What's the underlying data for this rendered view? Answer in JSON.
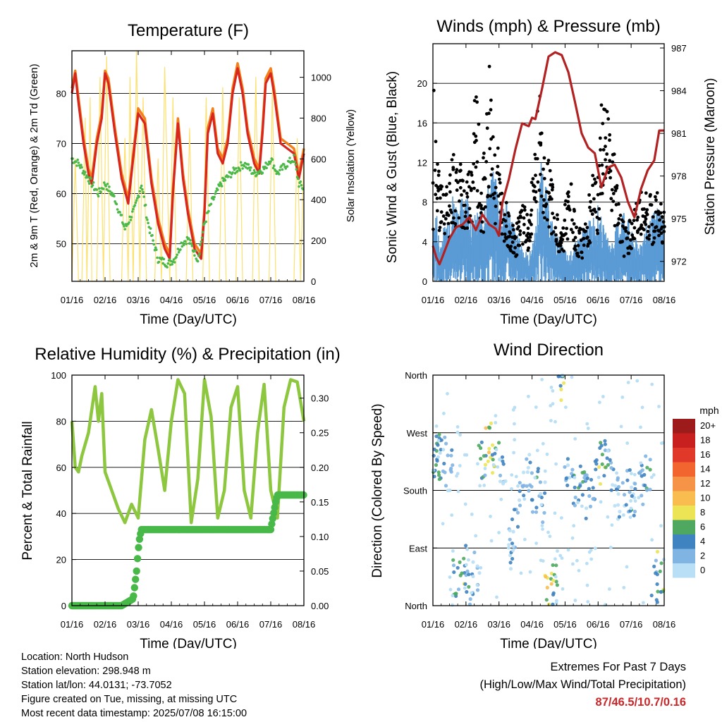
{
  "colors": {
    "temp_red": "#d7261e",
    "temp_orange": "#f2811d",
    "dewpoint_green": "#4cb848",
    "solar_yellow": "#fde06e",
    "wind_blue": "#5a9bd5",
    "gust_black": "#000000",
    "pressure_maroon": "#b22222",
    "rh_green": "#8dc63f",
    "precip_green": "#48b848",
    "extremes_red": "#c8282a"
  },
  "chart_data": [
    {
      "id": "temperature",
      "type": "line",
      "title": "Temperature (F)",
      "xlabel": "Time (Day/UTC)",
      "ylabel": "2m & 9m T (Red, Orange) & 2m Td (Green)",
      "ylabel_right": "Solar Insolation (Yellow)",
      "x_ticks": [
        "01/16",
        "02/16",
        "03/16",
        "04/16",
        "05/16",
        "06/16",
        "07/16",
        "08/16"
      ],
      "xlim": [
        0,
        7
      ],
      "ylim": [
        42.5,
        88.5
      ],
      "y_ticks": [
        50,
        60,
        70,
        80
      ],
      "ylim_right": [
        0,
        1130
      ],
      "y_ticks_right": [
        0,
        200,
        400,
        600,
        800,
        1000
      ],
      "grid": "horizontal",
      "series": [
        {
          "x": [
            0,
            0.1,
            0.2,
            0.35,
            0.5,
            0.6,
            0.75,
            0.9,
            1.0,
            1.1,
            1.3,
            1.5,
            1.7,
            1.8,
            2.0,
            2.2,
            2.4,
            2.6,
            2.8,
            2.95,
            3.05,
            3.2,
            3.35,
            3.5,
            3.7,
            3.9,
            4.0,
            4.1,
            4.25,
            4.4,
            4.55,
            4.7,
            4.85,
            5.0,
            5.15,
            5.3,
            5.5,
            5.65,
            5.75,
            5.85,
            6.0,
            6.1,
            6.3,
            6.5,
            6.7,
            6.85,
            7.0
          ],
          "y": [
            80,
            84,
            78,
            70,
            64,
            62,
            70,
            75,
            84,
            82,
            72,
            63,
            58,
            64,
            76,
            74,
            62,
            54,
            49,
            47,
            60,
            74,
            63,
            56,
            49,
            47,
            56,
            72,
            76,
            68,
            66,
            70,
            80,
            85,
            80,
            72,
            66,
            64,
            72,
            82,
            84,
            80,
            70,
            69,
            68,
            63,
            68
          ]
        },
        {
          "x": [
            0,
            0.1,
            0.2,
            0.35,
            0.5,
            0.6,
            0.75,
            0.9,
            1.0,
            1.1,
            1.3,
            1.5,
            1.7,
            1.8,
            2.0,
            2.2,
            2.4,
            2.6,
            2.8,
            2.95,
            3.05,
            3.2,
            3.35,
            3.5,
            3.7,
            3.9,
            4.0,
            4.1,
            4.25,
            4.4,
            4.55,
            4.7,
            4.85,
            5.0,
            5.15,
            5.3,
            5.5,
            5.65,
            5.75,
            5.85,
            6.0,
            6.1,
            6.3,
            6.5,
            6.7,
            6.85,
            7.0
          ],
          "y": [
            81,
            84.5,
            79,
            71,
            65,
            63,
            71,
            76,
            84.5,
            83,
            73,
            64,
            59,
            65,
            77,
            75,
            63,
            55,
            50,
            48,
            61,
            75,
            64,
            57,
            50,
            48,
            57,
            73,
            77,
            69,
            67,
            71,
            81,
            86,
            81,
            73,
            67,
            65,
            73,
            83,
            85,
            81,
            71,
            70,
            69,
            64,
            69
          ]
        },
        {
          "x": [
            0,
            0.2,
            0.5,
            0.8,
            1.0,
            1.3,
            1.6,
            1.9,
            2.1,
            2.3,
            2.6,
            2.9,
            3.1,
            3.3,
            3.5,
            3.8,
            4.0,
            4.2,
            4.5,
            4.8,
            5.0,
            5.2,
            5.5,
            5.8,
            6.0,
            6.2,
            6.5,
            6.7,
            6.85,
            7.0
          ],
          "y": [
            67,
            66,
            63,
            60,
            62,
            59,
            53,
            57,
            62,
            54,
            47,
            46,
            47,
            50,
            51,
            47,
            54,
            58,
            62,
            64,
            65,
            66,
            64,
            65,
            67,
            64,
            66,
            67,
            62,
            61
          ]
        },
        {
          "x": [
            0,
            0.1,
            0.2,
            0.3,
            0.4,
            0.45,
            0.55,
            0.6,
            0.75,
            0.85,
            0.95,
            1.05,
            1.15,
            1.25,
            1.5,
            1.6,
            1.7,
            1.75,
            1.85,
            1.95,
            2.05,
            2.15,
            2.25,
            2.5,
            2.6,
            2.7,
            2.8,
            2.95,
            3.05,
            3.15,
            3.25,
            3.45,
            3.55,
            3.65,
            3.75,
            3.95,
            4.05,
            4.15,
            4.25,
            4.45,
            4.55,
            4.65,
            4.75,
            4.95,
            5.05,
            5.15,
            5.25,
            5.45,
            5.55,
            5.65,
            5.75,
            5.95,
            6.05,
            6.15,
            6.25,
            6.5,
            6.7,
            6.8,
            6.9,
            7.0
          ],
          "y": [
            0,
            600,
            0,
            0,
            800,
            0,
            900,
            0,
            0,
            1000,
            0,
            1100,
            0,
            0,
            0,
            700,
            0,
            1000,
            0,
            1130,
            0,
            900,
            0,
            0,
            600,
            0,
            1050,
            0,
            900,
            0,
            0,
            0,
            750,
            0,
            0,
            0,
            900,
            0,
            0,
            0,
            950,
            0,
            0,
            0,
            900,
            0,
            0,
            0,
            1000,
            0,
            0,
            0,
            950,
            0,
            0,
            0,
            0,
            700,
            0,
            650
          ]
        }
      ]
    },
    {
      "id": "winds_pressure",
      "type": "scatter",
      "title": "Winds (mph) & Pressure (mb)",
      "xlabel": "Time (Day/UTC)",
      "ylabel": "Sonic Wind & Gust (Blue, Black)",
      "ylabel_right": "Station Pressure (Maroon)",
      "x_ticks": [
        "01/16",
        "02/16",
        "03/16",
        "04/16",
        "05/16",
        "06/16",
        "07/16",
        "08/16"
      ],
      "xlim": [
        0,
        7
      ],
      "ylim": [
        0,
        24
      ],
      "y_ticks": [
        0,
        4,
        8,
        12,
        16,
        20
      ],
      "ylim_right": [
        970.6,
        987.3
      ],
      "y_ticks_right": [
        972,
        975,
        978,
        981,
        984,
        987
      ],
      "grid": "horizontal",
      "series": [
        {
          "x": [
            0,
            0.1,
            0.2,
            0.4,
            0.6,
            0.8,
            1.0,
            1.2,
            1.5,
            1.7,
            1.9,
            2.1,
            2.2,
            2.5,
            2.7,
            2.9,
            3.1,
            3.3,
            3.5,
            3.7,
            3.9,
            4.1,
            4.3,
            4.5,
            4.8,
            5.0,
            5.2,
            5.4,
            5.6,
            5.8,
            6.0,
            6.2,
            6.4,
            6.6,
            6.8,
            7.0
          ],
          "y": [
            4,
            6,
            3,
            5,
            7,
            6,
            8,
            5,
            6,
            8,
            9,
            5,
            7,
            4,
            3,
            2,
            4,
            10,
            6,
            4,
            3,
            2,
            3,
            4,
            5,
            6,
            4,
            3,
            5,
            6,
            4,
            3,
            4,
            5,
            6,
            5
          ]
        },
        {
          "x": [
            0,
            0.05,
            0.1,
            0.15,
            0.3,
            0.5,
            0.6,
            0.7,
            0.9,
            1.0,
            1.1,
            1.2,
            1.3,
            1.5,
            1.6,
            1.7,
            1.8,
            1.9,
            2.0,
            2.1,
            2.3,
            2.5,
            2.7,
            2.9,
            3.1,
            3.2,
            3.3,
            3.4,
            3.6,
            3.8,
            3.9,
            4.0,
            4.2,
            4.3,
            4.5,
            4.7,
            4.8,
            5.0,
            5.1,
            5.2,
            5.3,
            5.5,
            5.7,
            5.8,
            5.9,
            6.1,
            6.3,
            6.5,
            6.7,
            6.8,
            6.9,
            7.0
          ],
          "y": [
            8,
            21.7,
            16,
            12,
            9,
            10,
            13.7,
            11,
            12,
            10,
            13,
            11,
            20,
            9,
            16.5,
            20.8,
            18,
            12,
            13.5,
            9,
            7,
            5,
            8,
            6,
            14,
            19,
            16,
            13,
            10,
            6,
            4,
            8,
            10,
            6,
            5,
            7,
            11,
            10,
            18,
            19.3,
            17,
            12,
            7,
            5,
            6,
            7,
            10,
            9,
            8,
            10,
            8,
            9
          ]
        },
        {
          "x": [
            0,
            0.1,
            0.2,
            0.3,
            0.5,
            0.7,
            0.9,
            1.1,
            1.3,
            1.5,
            1.7,
            1.9,
            2.0,
            2.1,
            2.3,
            2.5,
            2.7,
            2.9,
            3.0,
            3.1,
            3.3,
            3.5,
            3.7,
            3.9,
            4.1,
            4.3,
            4.5,
            4.7,
            4.8,
            4.9,
            5.1,
            5.3,
            5.5,
            5.7,
            5.9,
            6.1,
            6.3,
            6.5,
            6.7,
            6.85,
            7.0
          ],
          "y": [
            973.1,
            972.3,
            971.8,
            972.4,
            973.6,
            974.4,
            974.6,
            975.1,
            974.2,
            975.3,
            974.6,
            974.3,
            973.8,
            976.1,
            977.8,
            979.9,
            981.7,
            981.5,
            982.1,
            982.0,
            984.1,
            986.4,
            986.7,
            986.5,
            985.3,
            983.2,
            981.0,
            980.0,
            979.8,
            979.6,
            977.2,
            978.6,
            978.8,
            977.9,
            976.2,
            975.1,
            977.1,
            978.4,
            979.1,
            981.2,
            981.2
          ]
        }
      ]
    },
    {
      "id": "humidity_precip",
      "type": "line",
      "title": "Relative Humidity (%) & Precipitation (in)",
      "xlabel": "Time (Day/UTC)",
      "ylabel": "Percent & Total Rainfall",
      "x_ticks": [
        "01/16",
        "02/16",
        "03/16",
        "04/16",
        "05/16",
        "06/16",
        "07/16",
        "08/16"
      ],
      "xlim": [
        0,
        7
      ],
      "ylim": [
        0,
        100
      ],
      "y_ticks": [
        0,
        20,
        40,
        60,
        80,
        100
      ],
      "ylim_right": [
        0,
        0.3333
      ],
      "y_ticks_right": [
        "0.00",
        "0.05",
        "0.10",
        "0.15",
        "0.20",
        "0.25",
        "0.30"
      ],
      "grid": "horizontal",
      "series": [
        {
          "x": [
            0,
            0.1,
            0.2,
            0.3,
            0.5,
            0.7,
            0.8,
            0.9,
            1.0,
            1.2,
            1.4,
            1.6,
            1.8,
            2.0,
            2.2,
            2.4,
            2.6,
            2.8,
            3.0,
            3.2,
            3.4,
            3.6,
            3.8,
            4.0,
            4.2,
            4.4,
            4.6,
            4.8,
            5.0,
            5.2,
            5.4,
            5.6,
            5.8,
            6.0,
            6.2,
            6.4,
            6.6,
            6.8,
            7.0
          ],
          "y": [
            80,
            60,
            58,
            65,
            75,
            95,
            80,
            92,
            58,
            50,
            42,
            36,
            44,
            38,
            72,
            85,
            68,
            50,
            80,
            98,
            92,
            36,
            55,
            98,
            82,
            38,
            50,
            86,
            95,
            50,
            38,
            75,
            96,
            50,
            38,
            86,
            98,
            97,
            80
          ]
        },
        {
          "x": [
            0,
            1.5,
            1.85,
            1.95,
            2.0,
            2.05,
            2.1,
            2.3,
            5.2,
            6.0,
            6.15,
            6.2,
            6.3,
            7.0
          ],
          "y": [
            0,
            0,
            0.01,
            0.05,
            0.08,
            0.1,
            0.11,
            0.11,
            0.11,
            0.11,
            0.15,
            0.16,
            0.16,
            0.16
          ]
        }
      ]
    },
    {
      "id": "wind_direction",
      "type": "scatter",
      "title": "Wind Direction",
      "xlabel": "Time (Day/UTC)",
      "ylabel": "Direction (Colored By Speed)",
      "x_ticks": [
        "01/16",
        "02/16",
        "03/16",
        "04/16",
        "05/16",
        "06/16",
        "07/16",
        "08/16"
      ],
      "xlim": [
        0,
        7
      ],
      "ylim": [
        0,
        360
      ],
      "y_ticks": [
        "North",
        "East",
        "South",
        "West",
        "North"
      ],
      "grid": "horizontal",
      "legend_title": "mph",
      "legend_labels": [
        "20+",
        "18",
        "16",
        "14",
        "12",
        "10",
        "8",
        "6",
        "4",
        "2",
        "0"
      ],
      "legend_colors": [
        "#9e1b1b",
        "#c8201e",
        "#e0392a",
        "#f2652e",
        "#f59446",
        "#f8bc4f",
        "#ece454",
        "#4ea860",
        "#3f83c0",
        "#7fb4e3",
        "#b8dff5"
      ],
      "series": [
        {
          "x": [
            0.05,
            0.15,
            0.3,
            0.5,
            0.7,
            0.9,
            1.1,
            1.3,
            1.5,
            1.7,
            1.9,
            2.1,
            2.3,
            2.5,
            2.7,
            2.9,
            3.1,
            3.3,
            3.5,
            3.7,
            3.9,
            4.1,
            4.3,
            4.5,
            4.7,
            4.9,
            5.1,
            5.3,
            5.5,
            5.7,
            5.9,
            6.1,
            6.3,
            6.5,
            6.7,
            6.9
          ],
          "y": [
            230,
            220,
            240,
            210,
            40,
            60,
            30,
            50,
            230,
            250,
            220,
            200,
            90,
            120,
            180,
            210,
            180,
            160,
            20,
            30,
            350,
            200,
            180,
            190,
            170,
            200,
            220,
            240,
            190,
            170,
            180,
            160,
            190,
            210,
            40,
            50
          ],
          "speed": [
            4,
            6,
            4,
            2,
            4,
            6,
            4,
            2,
            4,
            8,
            6,
            2,
            2,
            2,
            2,
            2,
            4,
            2,
            8,
            6,
            6,
            2,
            4,
            4,
            2,
            4,
            6,
            4,
            2,
            2,
            4,
            2,
            2,
            4,
            4,
            6
          ]
        }
      ]
    }
  ],
  "info": {
    "location": "Location: North Hudson",
    "elevation": "Station elevation: 298.948 m",
    "latlon": "Station lat/lon: 44.0131; -73.7052",
    "created": "Figure created on Tue, missing, at missing UTC",
    "timestamp": "Most recent data timestamp: 2025/07/08 16:15:00"
  },
  "extremes": {
    "heading": "Extremes For Past 7 Days",
    "subheading": "(High/Low/Max Wind/Total Precipitation)",
    "values": "87/46.5/10.7/0.16"
  }
}
